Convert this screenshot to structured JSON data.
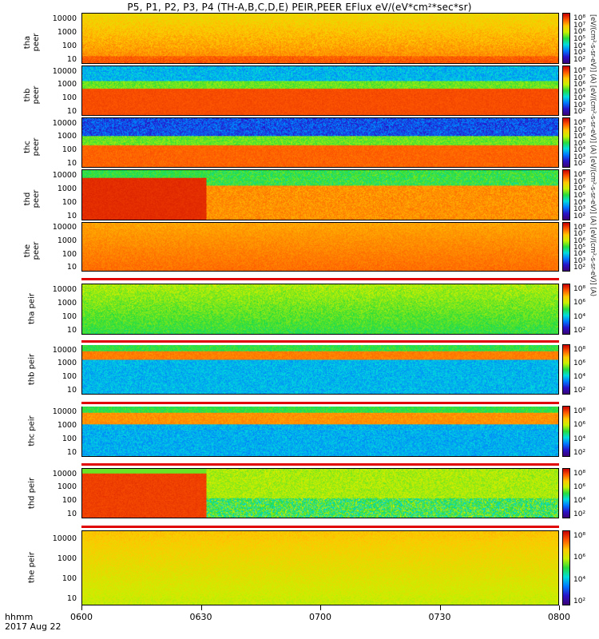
{
  "title": "P5, P1, P2, P3, P4 (TH-A,B,C,D,E) PEIR,PEER EFlux eV/(eV*cm²*sec*sr)",
  "time_axis": {
    "label_top": "hhmm",
    "label_bottom": "2017 Aug 22",
    "ticks": [
      "0600",
      "0630",
      "0700",
      "0730",
      "0800"
    ]
  },
  "colorbar_label": "[eV/(cm²-s-sr-eV)] (A) [eV/(cm²-s-sr-eV)] (A) [eV/(cm²-s-sr-eV)] (A) [eV/(cm²-s-sr-eV)] (A)",
  "colorbar_ticks_low": [
    "10⁸",
    "10⁶",
    "10⁴",
    "10²"
  ],
  "chart_data": {
    "type": "heatmap",
    "x_range": [
      "0600",
      "0800"
    ],
    "y_scale": "log",
    "y_ticks": [
      "10000",
      "1000",
      "100",
      "10"
    ],
    "colorbar_scale": "log",
    "colorbar_ticks": [
      "10⁸",
      "10⁷",
      "10⁶",
      "10⁵",
      "10⁴",
      "10³",
      "10²"
    ],
    "panels": [
      {
        "label": "tha peer",
        "probe": "tha",
        "species": "peer"
      },
      {
        "label": "thb peer",
        "probe": "thb",
        "species": "peer"
      },
      {
        "label": "thc peer",
        "probe": "thc",
        "species": "peer"
      },
      {
        "label": "thd peer",
        "probe": "thd",
        "species": "peer"
      },
      {
        "label": "the peer",
        "probe": "the",
        "species": "peer"
      },
      {
        "label": "tha peir",
        "probe": "tha",
        "species": "peir"
      },
      {
        "label": "thb peir",
        "probe": "thb",
        "species": "peir"
      },
      {
        "label": "thc peir",
        "probe": "thc",
        "species": "peir"
      },
      {
        "label": "thd peir",
        "probe": "thd",
        "species": "peir"
      },
      {
        "label": "the peir",
        "probe": "the",
        "species": "peir"
      }
    ]
  }
}
